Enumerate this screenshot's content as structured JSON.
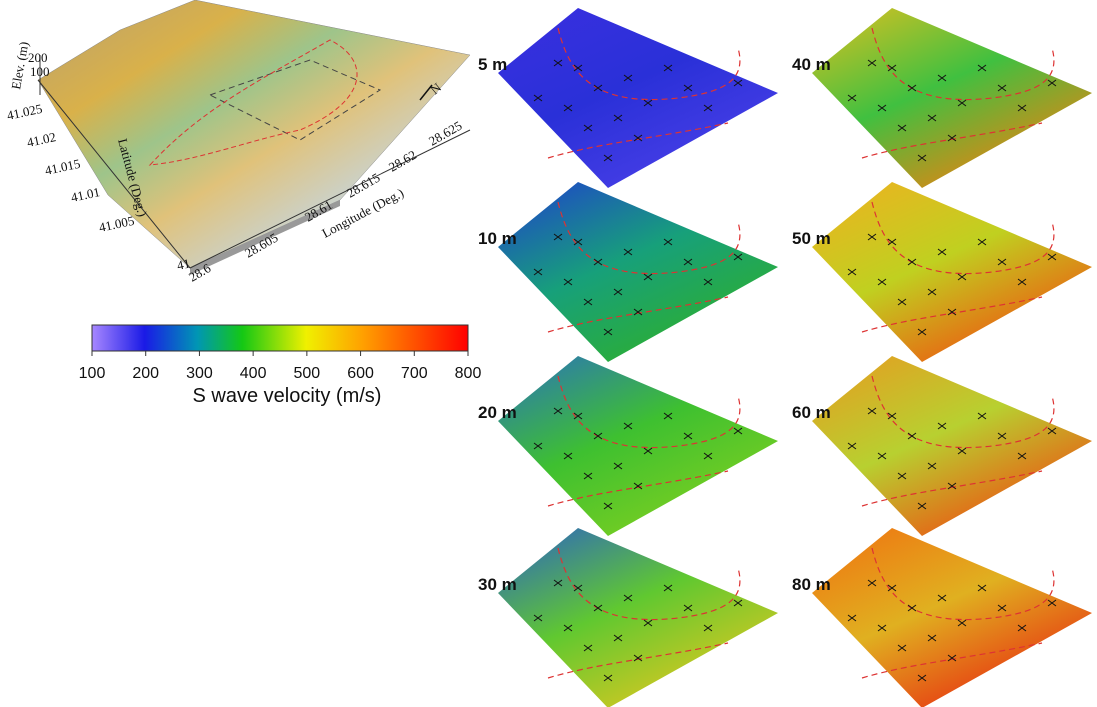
{
  "terrain": {
    "elevation_label": "Elev. (m)",
    "elevation_ticks": [
      200,
      100
    ],
    "latitude_label": "Latitude (Deg.)",
    "latitude_ticks": [
      41.025,
      41.02,
      41.015,
      41.01,
      41.005,
      41
    ],
    "longitude_label": "Longitude (Deg.)",
    "longitude_ticks": [
      28.6,
      28.605,
      28.61,
      28.615,
      28.62,
      28.625
    ],
    "north": "N"
  },
  "colorbar": {
    "ticks": [
      100,
      200,
      300,
      400,
      500,
      600,
      700,
      800
    ],
    "label": "S wave velocity (m/s)"
  },
  "panels": [
    "5 m",
    "10 m",
    "20 m",
    "30 m",
    "40 m",
    "50 m",
    "60 m",
    "80 m"
  ]
}
